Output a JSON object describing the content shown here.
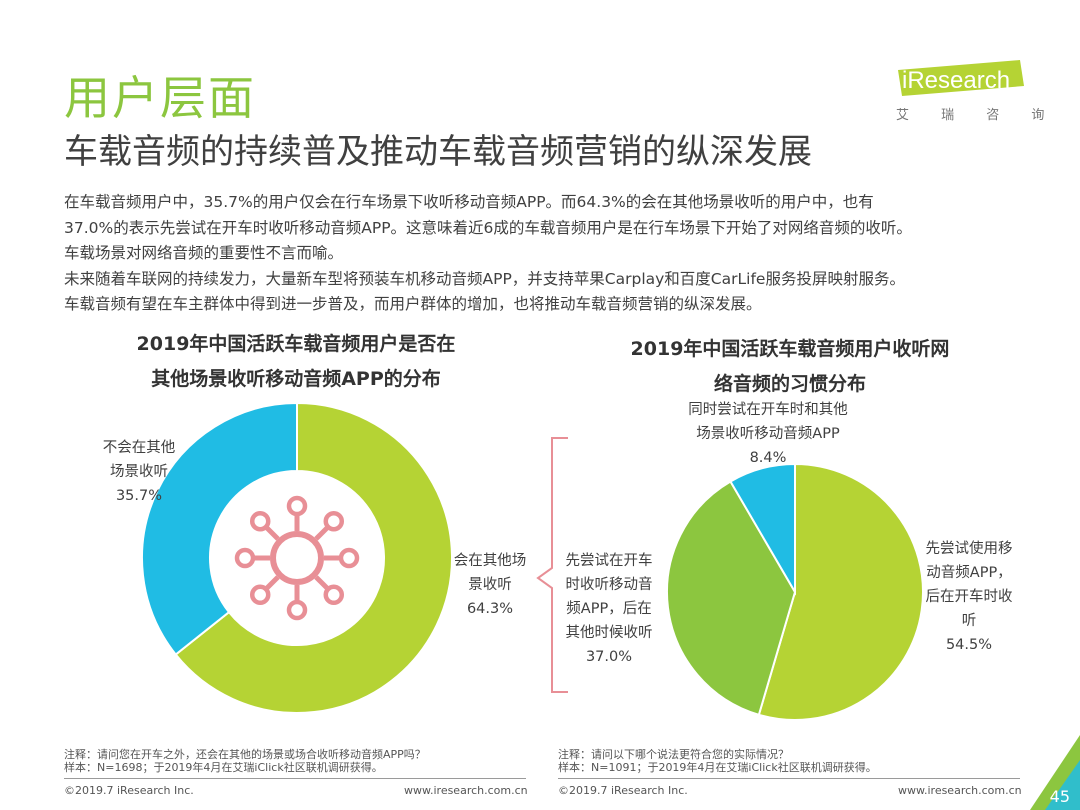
{
  "section_title": "用户层面",
  "heading": "车载音频的持续普及推动车载音频营销的纵深发展",
  "logo": {
    "text": "iResearch",
    "subtitle": "艾 瑞 咨 询"
  },
  "summary": [
    "在车载音频用户中，35.7%的用户仅会在行车场景下收听移动音频APP。而64.3%的会在其他场景收听的用户中，也有",
    "37.0%的表示先尝试在开车时收听移动音频APP。这意味着近6成的车载音频用户是在行车场景下开始了对网络音频的收听。",
    "车载场景对网络音频的重要性不言而喻。",
    "未来随着车联网的持续发力，大量新车型将预装车机移动音频APP，并支持苹果Carplay和百度CarLife服务投屏映射服务。",
    "车载音频有望在车主群体中得到进一步普及，而用户群体的增加，也将推动车载音频营销的纵深发展。"
  ],
  "chart_data": [
    {
      "type": "pie",
      "title_lines": [
        "2019年中国活跃车载音频用户是否在",
        "其他场景收听移动音频APP的分布"
      ],
      "slices": [
        {
          "label_lines": [
            "会在其他场",
            "景收听"
          ],
          "value": 64.3,
          "display": "64.3%",
          "color": "#b5d334"
        },
        {
          "label_lines": [
            "不会在其他",
            "场景收听"
          ],
          "value": 35.7,
          "display": "35.7%",
          "color": "#20bce4"
        }
      ],
      "donut": true
    },
    {
      "type": "pie",
      "title_lines": [
        "2019年中国活跃车载音频用户收听网",
        "络音频的习惯分布"
      ],
      "slices": [
        {
          "label_lines": [
            "先尝试使用移",
            "动音频APP，",
            "后在开车时收",
            "听"
          ],
          "value": 54.5,
          "display": "54.5%",
          "color": "#b5d334"
        },
        {
          "label_lines": [
            "先尝试在开车",
            "时收听移动音",
            "频APP，后在",
            "其他时候收听"
          ],
          "value": 37.0,
          "display": "37.0%",
          "color": "#8cc63f"
        },
        {
          "label_lines": [
            "同时尝试在开车时和其他",
            "场景收听移动音频APP"
          ],
          "value": 8.4,
          "display": "8.4%",
          "color": "#20bce4"
        }
      ],
      "donut": false
    }
  ],
  "notes": {
    "left": [
      "注释：请问您在开车之外，还会在其他的场景或场合收听移动音频APP吗？",
      "样本：N=1698；于2019年4月在艾瑞iClick社区联机调研获得。"
    ],
    "right": [
      "注释：请问以下哪个说法更符合您的实际情况？",
      "样本：N=1091；于2019年4月在艾瑞iClick社区联机调研获得。"
    ]
  },
  "footer": {
    "copyright": "©2019.7 iResearch Inc.",
    "url": "www.iresearch.com.cn"
  },
  "page_number": "45",
  "colors": {
    "accent": "#8cc63f",
    "lime": "#b5d334",
    "cyan": "#20bce4",
    "bracket": "#e88f96",
    "icon": "#e88f96"
  }
}
